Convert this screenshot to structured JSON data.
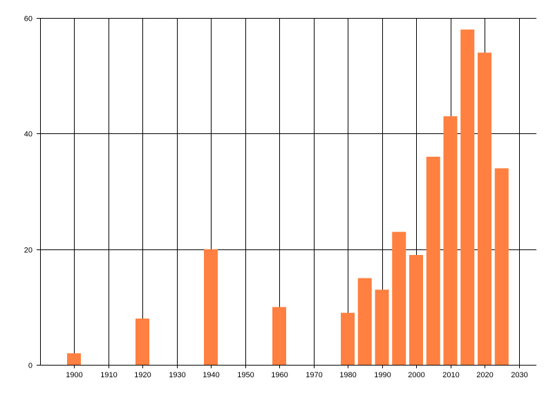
{
  "chart_data": {
    "type": "bar",
    "title": "",
    "xlabel": "",
    "ylabel": "",
    "x": [
      1900,
      1920,
      1940,
      1960,
      1980,
      1985,
      1990,
      1995,
      2000,
      2005,
      2010,
      2015,
      2020,
      2025
    ],
    "values": [
      2,
      8,
      20,
      10,
      9,
      15,
      13,
      23,
      19,
      36,
      43,
      58,
      54,
      34
    ],
    "xlim": [
      1890,
      2035
    ],
    "ylim": [
      0,
      60
    ],
    "x_ticks": [
      1900,
      1910,
      1920,
      1930,
      1940,
      1950,
      1960,
      1970,
      1980,
      1990,
      2000,
      2010,
      2020,
      2030
    ],
    "y_ticks": [
      0,
      20,
      40,
      60
    ],
    "grid": true,
    "bar_color": "#ff8040",
    "grid_color": "#000000"
  }
}
